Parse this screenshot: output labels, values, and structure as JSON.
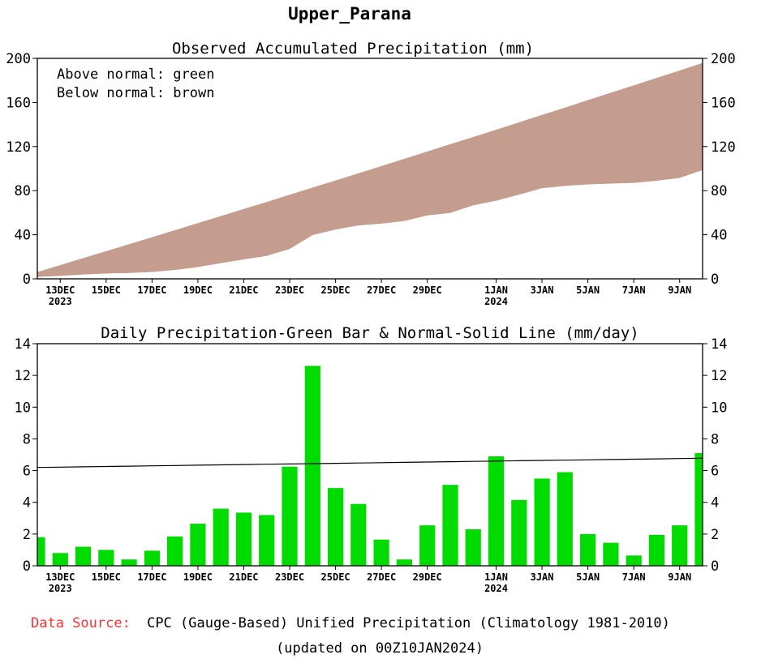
{
  "chart_data": [
    {
      "type": "area",
      "title": "Observed Accumulated Precipitation (mm)",
      "region": "Upper_Parana",
      "legend": [
        "Above normal: green",
        "Below normal: brown"
      ],
      "legend_position": "top-left",
      "ylim": [
        0,
        200
      ],
      "yticks": [
        0,
        40,
        80,
        120,
        160,
        200
      ],
      "x_range_days": [
        0,
        29
      ],
      "xtick_labels": [
        {
          "day": 1,
          "label": "13DEC",
          "sub": "2023"
        },
        {
          "day": 3,
          "label": "15DEC"
        },
        {
          "day": 5,
          "label": "17DEC"
        },
        {
          "day": 7,
          "label": "19DEC"
        },
        {
          "day": 9,
          "label": "21DEC"
        },
        {
          "day": 11,
          "label": "23DEC"
        },
        {
          "day": 13,
          "label": "25DEC"
        },
        {
          "day": 15,
          "label": "27DEC"
        },
        {
          "day": 17,
          "label": "29DEC"
        },
        {
          "day": 20,
          "label": "1JAN",
          "sub": "2024"
        },
        {
          "day": 22,
          "label": "3JAN"
        },
        {
          "day": 24,
          "label": "5JAN"
        },
        {
          "day": 26,
          "label": "7JAN"
        },
        {
          "day": 28,
          "label": "9JAN"
        }
      ],
      "x": [
        0,
        1,
        2,
        3,
        4,
        5,
        6,
        7,
        8,
        9,
        10,
        11,
        12,
        13,
        14,
        15,
        16,
        17,
        18,
        19,
        20,
        21,
        22,
        23,
        24,
        25,
        26,
        27,
        28,
        29
      ],
      "series": [
        {
          "name": "Observed",
          "values": [
            1.8,
            2.6,
            3.8,
            4.8,
            5.2,
            6.2,
            8.0,
            10.6,
            14.2,
            17.6,
            20.8,
            27.0,
            39.6,
            44.6,
            48.4,
            50.0,
            52.4,
            57.4,
            59.7,
            66.6,
            70.8,
            76.3,
            82.2,
            84.2,
            85.6,
            86.3,
            87.0,
            88.9,
            91.5,
            98.6
          ]
        },
        {
          "name": "Normal",
          "values": [
            6.2,
            12.5,
            18.8,
            25.1,
            31.5,
            37.8,
            44.2,
            50.6,
            57.0,
            63.4,
            69.8,
            76.3,
            82.8,
            89.3,
            95.8,
            102.3,
            108.9,
            115.5,
            122.1,
            128.7,
            135.3,
            142.0,
            148.7,
            155.4,
            162.1,
            168.8,
            175.5,
            182.3,
            189.0,
            195.9
          ]
        }
      ],
      "colors": {
        "below_normal_fill": "#c59d8f",
        "above_normal_fill": "#00c800"
      }
    },
    {
      "type": "bar",
      "title": "Daily Precipitation-Green Bar & Normal-Solid Line (mm/day)",
      "ylim": [
        0,
        14
      ],
      "yticks": [
        0,
        2,
        4,
        6,
        8,
        10,
        12,
        14
      ],
      "x_range_days": [
        0,
        29
      ],
      "xtick_labels": [
        {
          "day": 1,
          "label": "13DEC",
          "sub": "2023"
        },
        {
          "day": 3,
          "label": "15DEC"
        },
        {
          "day": 5,
          "label": "17DEC"
        },
        {
          "day": 7,
          "label": "19DEC"
        },
        {
          "day": 9,
          "label": "21DEC"
        },
        {
          "day": 11,
          "label": "23DEC"
        },
        {
          "day": 13,
          "label": "25DEC"
        },
        {
          "day": 15,
          "label": "27DEC"
        },
        {
          "day": 17,
          "label": "29DEC"
        },
        {
          "day": 20,
          "label": "1JAN",
          "sub": "2024"
        },
        {
          "day": 22,
          "label": "3JAN"
        },
        {
          "day": 24,
          "label": "5JAN"
        },
        {
          "day": 26,
          "label": "7JAN"
        },
        {
          "day": 28,
          "label": "9JAN"
        }
      ],
      "x": [
        0,
        1,
        2,
        3,
        4,
        5,
        6,
        7,
        8,
        9,
        10,
        11,
        12,
        13,
        14,
        15,
        16,
        17,
        18,
        19,
        20,
        21,
        22,
        23,
        24,
        25,
        26,
        27,
        28,
        29
      ],
      "series": [
        {
          "name": "Daily Precipitation",
          "values": [
            1.8,
            0.8,
            1.2,
            1.0,
            0.4,
            0.95,
            1.85,
            2.65,
            3.6,
            3.35,
            3.2,
            6.25,
            12.6,
            4.9,
            3.9,
            1.65,
            0.4,
            2.55,
            5.1,
            2.3,
            6.9,
            4.15,
            5.5,
            5.9,
            2.0,
            1.45,
            0.65,
            1.95,
            2.55,
            7.1
          ]
        },
        {
          "name": "Normal",
          "values": [
            6.2,
            6.22,
            6.24,
            6.26,
            6.28,
            6.3,
            6.32,
            6.34,
            6.36,
            6.38,
            6.4,
            6.42,
            6.44,
            6.46,
            6.48,
            6.5,
            6.52,
            6.54,
            6.56,
            6.58,
            6.6,
            6.62,
            6.64,
            6.66,
            6.68,
            6.7,
            6.72,
            6.74,
            6.76,
            6.78
          ]
        }
      ],
      "colors": {
        "bar": "#00dc00",
        "normal_line": "#000000"
      }
    }
  ],
  "figure": {
    "title": "Upper_Parana",
    "footer": {
      "source_label": "Data Source:",
      "source_text": "CPC (Gauge-Based) Unified Precipitation (Climatology 1981-2010)",
      "updated": "(updated on 00Z10JAN2024)"
    }
  }
}
